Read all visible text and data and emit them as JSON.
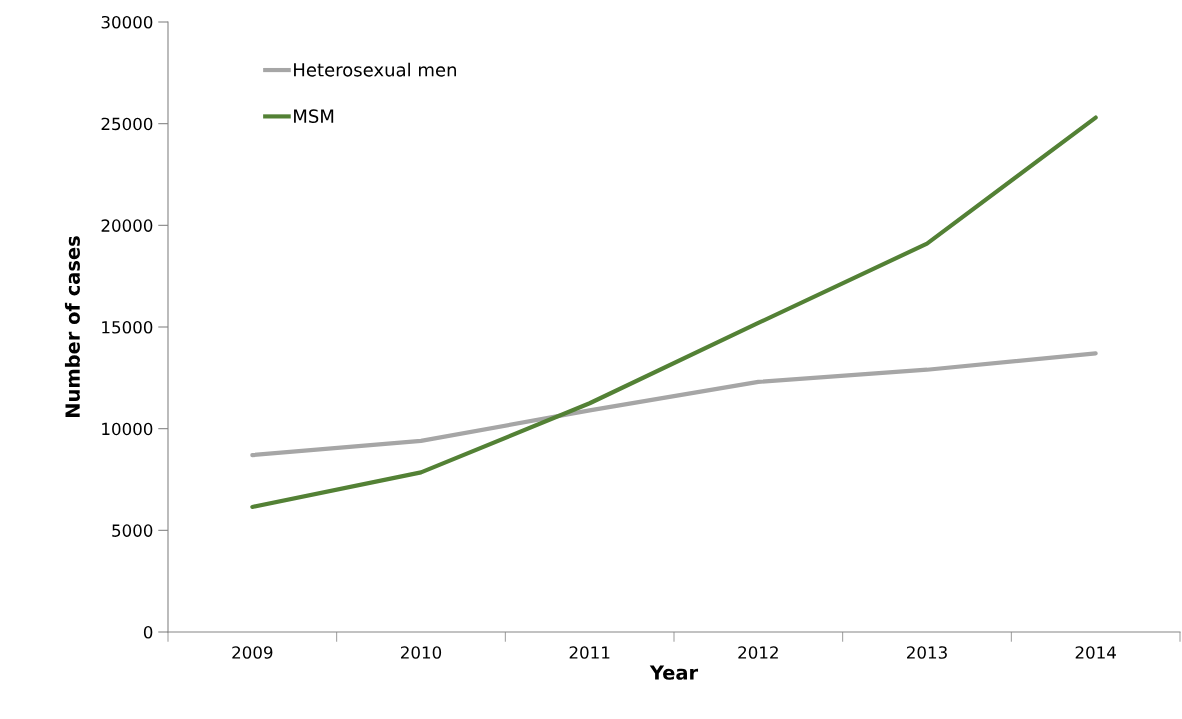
{
  "chart_data": {
    "type": "line",
    "xlabel": "Year",
    "ylabel": "Number of cases",
    "categories": [
      "2009",
      "2010",
      "2011",
      "2012",
      "2013",
      "2014"
    ],
    "series": [
      {
        "name": "Heterosexual men",
        "color": "#a6a6a6",
        "values": [
          8700,
          9400,
          10900,
          12300,
          12900,
          13700
        ]
      },
      {
        "name": "MSM",
        "color": "#538135",
        "values": [
          6150,
          7850,
          11250,
          15200,
          19100,
          25300
        ]
      }
    ],
    "ylim": [
      0,
      30000
    ],
    "yticks": [
      0,
      5000,
      10000,
      15000,
      20000,
      25000,
      30000
    ],
    "grid": false,
    "legend": "top left",
    "marker": "none",
    "line_style": "solid"
  }
}
